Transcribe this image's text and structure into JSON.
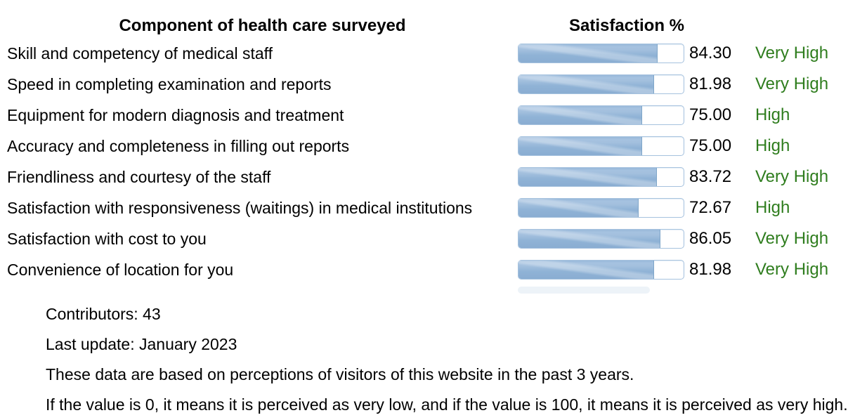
{
  "table": {
    "header_component": "Component of health care surveyed",
    "header_satisfaction": "Satisfaction %",
    "rows": [
      {
        "label": "Skill and competency of medical staff",
        "value": "84.30",
        "rating": "Very High"
      },
      {
        "label": "Speed in completing examination and reports",
        "value": "81.98",
        "rating": "Very High"
      },
      {
        "label": "Equipment for modern diagnosis and treatment",
        "value": "75.00",
        "rating": "High"
      },
      {
        "label": "Accuracy and completeness in filling out reports",
        "value": "75.00",
        "rating": "High"
      },
      {
        "label": "Friendliness and courtesy of the staff",
        "value": "83.72",
        "rating": "Very High"
      },
      {
        "label": "Satisfaction with responsiveness (waitings) in medical institutions",
        "value": "72.67",
        "rating": "High"
      },
      {
        "label": "Satisfaction with cost to you",
        "value": "86.05",
        "rating": "Very High"
      },
      {
        "label": "Convenience of location for you",
        "value": "81.98",
        "rating": "Very High"
      }
    ]
  },
  "footer": {
    "contributors": "Contributors: 43",
    "last_update": "Last update: January 2023",
    "note_basis": "These data are based on perceptions of visitors of this website in the past 3 years.",
    "note_scale": "If the value is 0, it means it is perceived as very low, and if the value is 100, it means it is perceived as very high."
  },
  "colors": {
    "bar_fill_main": "#90b3d6",
    "bar_fill_light": "#a6c2e0",
    "bar_border": "#a6c2de",
    "rating_green": "#2f7d1e",
    "text": "#000000"
  },
  "chart_data": {
    "type": "bar",
    "title": "Satisfaction %",
    "orientation": "horizontal",
    "categories": [
      "Skill and competency of medical staff",
      "Speed in completing examination and reports",
      "Equipment for modern diagnosis and treatment",
      "Accuracy and completeness in filling out reports",
      "Friendliness and courtesy of the staff",
      "Satisfaction with responsiveness (waitings) in medical institutions",
      "Satisfaction with cost to you",
      "Convenience of location for you"
    ],
    "values": [
      84.3,
      81.98,
      75.0,
      75.0,
      83.72,
      72.67,
      86.05,
      81.98
    ],
    "value_labels": [
      "84.30",
      "81.98",
      "75.00",
      "75.00",
      "83.72",
      "72.67",
      "86.05",
      "81.98"
    ],
    "ratings": [
      "Very High",
      "Very High",
      "High",
      "High",
      "Very High",
      "High",
      "Very High",
      "Very High"
    ],
    "xlabel": "Component of health care surveyed",
    "ylabel": "Satisfaction %",
    "xlim": [
      0,
      100
    ],
    "grid": false,
    "legend": false,
    "annotations": [
      "Contributors: 43",
      "Last update: January 2023"
    ]
  }
}
